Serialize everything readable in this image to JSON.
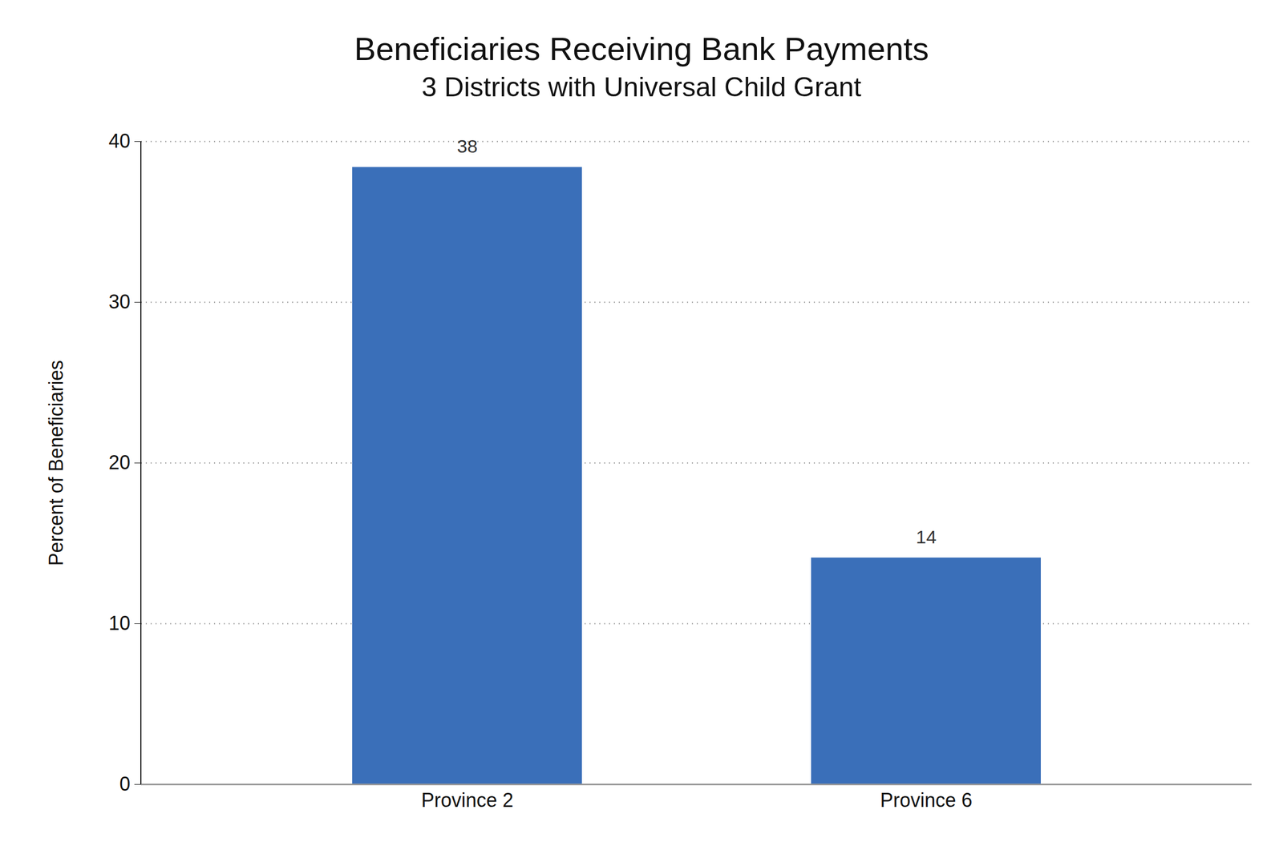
{
  "chart_data": {
    "type": "bar",
    "title": "Beneficiaries Receiving Bank Payments",
    "subtitle": "3 Districts with Universal Child Grant",
    "y_label": "Percent of Beneficiaries",
    "categories": [
      "Province 2",
      "Province 6"
    ],
    "values": [
      38.4,
      14.1
    ],
    "value_labels": [
      "38",
      "14"
    ],
    "color": "#3a6fb9",
    "ylim": [
      0,
      40
    ],
    "yticks": [
      0,
      10,
      20,
      30,
      40
    ],
    "grid": true,
    "data_labels": true
  }
}
